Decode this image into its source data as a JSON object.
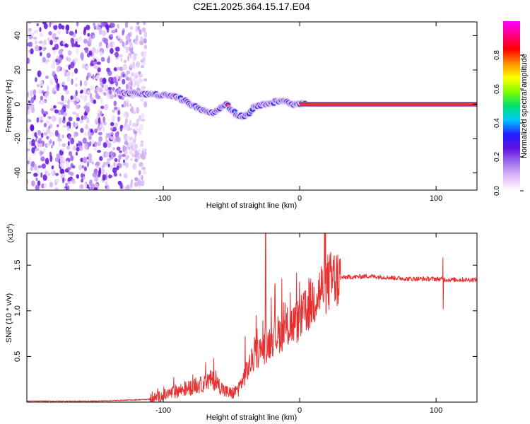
{
  "title": "C2E1.2025.364.15.17.E04",
  "chart_data": [
    {
      "type": "heatmap",
      "xlabel": "Height of straight line (km)",
      "ylabel": "Frequency (Hz)",
      "xlim": [
        -200,
        130
      ],
      "ylim": [
        -50,
        48
      ],
      "xticks": [
        -100,
        0,
        100
      ],
      "yticks": [
        -40,
        -20,
        0,
        20,
        40
      ],
      "noise_region_x": [
        -200,
        -113
      ],
      "track": {
        "x": [
          -133,
          -125,
          -118,
          -110,
          -103,
          -96,
          -90,
          -84,
          -78,
          -72,
          -67,
          -62,
          -58,
          -54,
          -50,
          -46,
          -42,
          -38,
          -34,
          -30,
          -25,
          -20,
          -15,
          -10,
          -5,
          0,
          5
        ],
        "y": [
          7,
          6.5,
          6,
          6,
          5.5,
          5,
          4,
          2,
          -1,
          -3,
          -5,
          -5,
          -2,
          0,
          -3,
          -6,
          -7,
          -6,
          -2,
          -1,
          0,
          1,
          2,
          2,
          0,
          0,
          1
        ]
      },
      "steady_line": {
        "x_start": 0,
        "x_end": 130,
        "y": 0
      },
      "colorbar": {
        "label": "Normalized spectral amplitude",
        "ticks": [
          0.0,
          0.2,
          0.4,
          0.6,
          0.8
        ],
        "range": [
          0,
          1
        ],
        "colors": [
          "#ffffff",
          "#e0bdf7",
          "#a070ee",
          "#6010e0",
          "#2020ff",
          "#00c8ff",
          "#00e070",
          "#80ff00",
          "#ffff00",
          "#ff9000",
          "#ff0000",
          "#ff0080",
          "#ff00ff"
        ]
      }
    },
    {
      "type": "line",
      "xlabel": "Height of straight line (km)",
      "ylabel": "SNR (10 * v/v)",
      "multiplier": "(x10^4)",
      "multiplier_base": "(x10",
      "multiplier_exp": "4",
      "multiplier_close": ")",
      "xlim": [
        -200,
        130
      ],
      "ylim": [
        0,
        1.85
      ],
      "xticks": [
        -100,
        0,
        100
      ],
      "yticks": [
        0.5,
        1.0,
        1.5
      ],
      "ytick_labels": [
        "0.5",
        "1.0",
        "1.5"
      ],
      "color": "#e83030",
      "trend": {
        "x": [
          -200,
          -150,
          -110,
          -100,
          -90,
          -80,
          -70,
          -65,
          -60,
          -55,
          -50,
          -45,
          -40,
          -35,
          -30,
          -25,
          -20,
          -15,
          -10,
          -5,
          0,
          5,
          10,
          15,
          20,
          25,
          30,
          35,
          40,
          50,
          60,
          70,
          80,
          90,
          100,
          110,
          120,
          130
        ],
        "y": [
          0.01,
          0.01,
          0.03,
          0.07,
          0.12,
          0.16,
          0.2,
          0.25,
          0.2,
          0.12,
          0.09,
          0.14,
          0.3,
          0.45,
          0.55,
          0.6,
          0.7,
          0.75,
          0.8,
          0.85,
          0.9,
          1.0,
          1.12,
          1.22,
          1.3,
          1.34,
          1.36,
          1.37,
          1.37,
          1.38,
          1.37,
          1.36,
          1.35,
          1.35,
          1.35,
          1.34,
          1.34,
          1.34
        ]
      },
      "spikes": [
        {
          "x": -63,
          "y": 0.48
        },
        {
          "x": -40,
          "y": 0.72
        },
        {
          "x": -32,
          "y": 0.95
        },
        {
          "x": -25,
          "y": 1.85
        },
        {
          "x": -18,
          "y": 1.3
        },
        {
          "x": -13,
          "y": 1.35
        },
        {
          "x": -7,
          "y": 1.2
        },
        {
          "x": 105,
          "y": 1.58
        }
      ],
      "dips": [
        {
          "x": 105,
          "y": 1.02
        }
      ]
    }
  ]
}
